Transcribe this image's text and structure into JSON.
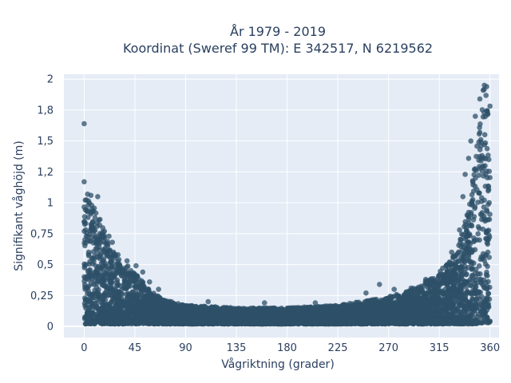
{
  "chart_data": {
    "type": "scatter",
    "title_line1": "År 1979 - 2019",
    "title_line2": "Koordinat (Sweref 99 TM): E 342517, N 6219562",
    "xlabel": "Vågriktning (grader)",
    "ylabel": "Signifikant våghöjd (m)",
    "xlim": [
      -18,
      368
    ],
    "ylim": [
      -0.09,
      2.04
    ],
    "x_ticks": [
      {
        "value": 0,
        "label": "0"
      },
      {
        "value": 45,
        "label": "45"
      },
      {
        "value": 90,
        "label": "90"
      },
      {
        "value": 135,
        "label": "135"
      },
      {
        "value": 180,
        "label": "180"
      },
      {
        "value": 225,
        "label": "225"
      },
      {
        "value": 270,
        "label": "270"
      },
      {
        "value": 315,
        "label": "315"
      },
      {
        "value": 360,
        "label": "360"
      }
    ],
    "y_ticks": [
      {
        "value": 0,
        "label": "0"
      },
      {
        "value": 0.25,
        "label": "0,25"
      },
      {
        "value": 0.5,
        "label": "0,5"
      },
      {
        "value": 0.75,
        "label": "0,75"
      },
      {
        "value": 1,
        "label": "1"
      },
      {
        "value": 1.25,
        "label": "1,2"
      },
      {
        "value": 1.5,
        "label": "1,5"
      },
      {
        "value": 1.75,
        "label": "1,8"
      },
      {
        "value": 2,
        "label": "2"
      }
    ],
    "grid": true,
    "marker_color": "#2e5068",
    "envelope": [
      {
        "x": 0,
        "y": 1.1
      },
      {
        "x": 5,
        "y": 1.05
      },
      {
        "x": 10,
        "y": 0.95
      },
      {
        "x": 15,
        "y": 0.85
      },
      {
        "x": 20,
        "y": 0.7
      },
      {
        "x": 25,
        "y": 0.62
      },
      {
        "x": 30,
        "y": 0.55
      },
      {
        "x": 40,
        "y": 0.48
      },
      {
        "x": 50,
        "y": 0.38
      },
      {
        "x": 60,
        "y": 0.28
      },
      {
        "x": 70,
        "y": 0.22
      },
      {
        "x": 90,
        "y": 0.17
      },
      {
        "x": 135,
        "y": 0.15
      },
      {
        "x": 180,
        "y": 0.15
      },
      {
        "x": 225,
        "y": 0.17
      },
      {
        "x": 270,
        "y": 0.24
      },
      {
        "x": 290,
        "y": 0.3
      },
      {
        "x": 310,
        "y": 0.4
      },
      {
        "x": 320,
        "y": 0.48
      },
      {
        "x": 330,
        "y": 0.6
      },
      {
        "x": 335,
        "y": 0.75
      },
      {
        "x": 340,
        "y": 0.95
      },
      {
        "x": 345,
        "y": 1.25
      },
      {
        "x": 350,
        "y": 1.6
      },
      {
        "x": 355,
        "y": 1.95
      },
      {
        "x": 360,
        "y": 1.8
      }
    ],
    "outliers": [
      {
        "x": 0,
        "y": 1.64
      },
      {
        "x": 0,
        "y": 1.17
      },
      {
        "x": 3,
        "y": 1.07
      },
      {
        "x": 6,
        "y": 1.06
      },
      {
        "x": 12,
        "y": 1.05
      },
      {
        "x": 13,
        "y": 0.86
      },
      {
        "x": 18,
        "y": 0.77
      },
      {
        "x": 22,
        "y": 0.73
      },
      {
        "x": 25,
        "y": 0.68
      },
      {
        "x": 30,
        "y": 0.58
      },
      {
        "x": 38,
        "y": 0.53
      },
      {
        "x": 46,
        "y": 0.49
      },
      {
        "x": 52,
        "y": 0.44
      },
      {
        "x": 58,
        "y": 0.36
      },
      {
        "x": 66,
        "y": 0.3
      },
      {
        "x": 110,
        "y": 0.2
      },
      {
        "x": 160,
        "y": 0.19
      },
      {
        "x": 205,
        "y": 0.19
      },
      {
        "x": 250,
        "y": 0.27
      },
      {
        "x": 262,
        "y": 0.34
      },
      {
        "x": 275,
        "y": 0.3
      },
      {
        "x": 290,
        "y": 0.31
      },
      {
        "x": 303,
        "y": 0.38
      },
      {
        "x": 318,
        "y": 0.47
      },
      {
        "x": 326,
        "y": 0.6
      },
      {
        "x": 333,
        "y": 0.78
      },
      {
        "x": 336,
        "y": 1.05
      },
      {
        "x": 338,
        "y": 1.23
      },
      {
        "x": 341,
        "y": 1.36
      },
      {
        "x": 343,
        "y": 1.5
      },
      {
        "x": 347,
        "y": 1.7
      },
      {
        "x": 351,
        "y": 1.84
      },
      {
        "x": 354,
        "y": 1.91
      },
      {
        "x": 355,
        "y": 1.95
      },
      {
        "x": 357,
        "y": 1.94
      },
      {
        "x": 358,
        "y": 1.72
      },
      {
        "x": 359,
        "y": 1.35
      }
    ],
    "min_height": 0.02
  }
}
